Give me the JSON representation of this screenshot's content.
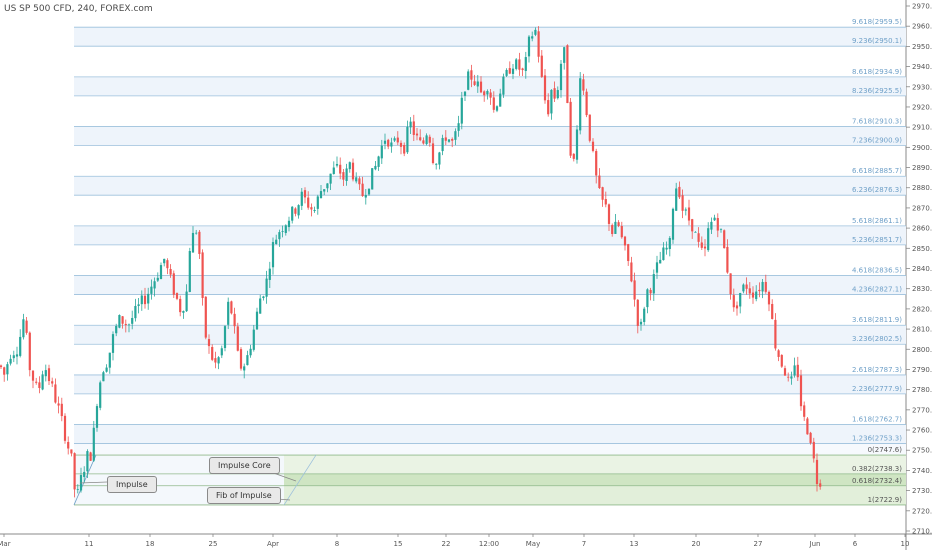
{
  "title": "US SP 500 CFD, 240, FOREX.com",
  "callouts": {
    "impulse": "Impulse",
    "impulse_core": "Impulse Core",
    "fib_of_impulse": "Fib of Impulse"
  },
  "chart_data": {
    "type": "candlestick",
    "title": "US SP 500 CFD, 240, FOREX.com",
    "ylim": [
      2707,
      2973
    ],
    "y_ticks": [
      2710,
      2720,
      2730,
      2740,
      2750,
      2760,
      2770,
      2780,
      2790,
      2800,
      2810,
      2820,
      2830,
      2840,
      2850,
      2860,
      2870,
      2880,
      2890,
      2900,
      2910,
      2920,
      2930,
      2940,
      2950,
      2960,
      2970
    ],
    "x_tick_labels": [
      "Mar",
      "11",
      "18",
      "25",
      "Apr",
      "8",
      "15",
      "22",
      "12:00",
      "May",
      "7",
      "13",
      "20",
      "27",
      "Jun",
      "6",
      "10"
    ],
    "fib_levels": [
      {
        "label": "9.618(2959.5)",
        "value": 2959.5
      },
      {
        "label": "9.236(2950.1)",
        "value": 2950.1
      },
      {
        "label": "8.618(2934.9)",
        "value": 2934.9
      },
      {
        "label": "8.236(2925.5)",
        "value": 2925.5
      },
      {
        "label": "7.618(2910.3)",
        "value": 2910.3
      },
      {
        "label": "7.236(2900.9)",
        "value": 2900.9
      },
      {
        "label": "6.618(2885.7)",
        "value": 2885.7
      },
      {
        "label": "6.236(2876.3)",
        "value": 2876.3
      },
      {
        "label": "5.618(2861.1)",
        "value": 2861.1
      },
      {
        "label": "5.236(2851.7)",
        "value": 2851.7
      },
      {
        "label": "4.618(2836.5)",
        "value": 2836.5
      },
      {
        "label": "4.236(2827.1)",
        "value": 2827.1
      },
      {
        "label": "3.618(2811.9)",
        "value": 2811.9
      },
      {
        "label": "3.236(2802.5)",
        "value": 2802.5
      },
      {
        "label": "2.618(2787.3)",
        "value": 2787.3
      },
      {
        "label": "2.236(2777.9)",
        "value": 2777.9
      },
      {
        "label": "1.618(2762.7)",
        "value": 2762.7
      },
      {
        "label": "1.236(2753.3)",
        "value": 2753.3
      }
    ],
    "impulse_levels": [
      {
        "label": "0(2747.6)",
        "value": 2747.6
      },
      {
        "label": "0.382(2738.3)",
        "value": 2738.3
      },
      {
        "label": "0.618(2732.4)",
        "value": 2732.4
      },
      {
        "label": "1(2722.9)",
        "value": 2722.9
      }
    ],
    "price_path": [
      [
        0,
        2792
      ],
      [
        4,
        2787
      ],
      [
        10,
        2798
      ],
      [
        18,
        2801
      ],
      [
        24,
        2816
      ],
      [
        30,
        2790
      ],
      [
        38,
        2778
      ],
      [
        44,
        2793
      ],
      [
        52,
        2781
      ],
      [
        60,
        2768
      ],
      [
        66,
        2756
      ],
      [
        72,
        2744
      ],
      [
        76,
        2724
      ],
      [
        82,
        2738
      ],
      [
        88,
        2748
      ],
      [
        92,
        2748
      ],
      [
        96,
        2772
      ],
      [
        102,
        2790
      ],
      [
        108,
        2795
      ],
      [
        114,
        2808
      ],
      [
        120,
        2815
      ],
      [
        128,
        2812
      ],
      [
        134,
        2817
      ],
      [
        140,
        2822
      ],
      [
        146,
        2826
      ],
      [
        152,
        2832
      ],
      [
        158,
        2838
      ],
      [
        164,
        2845
      ],
      [
        168,
        2838
      ],
      [
        174,
        2829
      ],
      [
        180,
        2820
      ],
      [
        186,
        2824
      ],
      [
        190,
        2852
      ],
      [
        196,
        2860
      ],
      [
        200,
        2845
      ],
      [
        204,
        2810
      ],
      [
        210,
        2798
      ],
      [
        216,
        2792
      ],
      [
        222,
        2800
      ],
      [
        228,
        2822
      ],
      [
        232,
        2818
      ],
      [
        238,
        2796
      ],
      [
        242,
        2790
      ],
      [
        248,
        2797
      ],
      [
        254,
        2810
      ],
      [
        260,
        2825
      ],
      [
        266,
        2832
      ],
      [
        272,
        2850
      ],
      [
        278,
        2858
      ],
      [
        284,
        2862
      ],
      [
        290,
        2866
      ],
      [
        296,
        2870
      ],
      [
        302,
        2876
      ],
      [
        308,
        2872
      ],
      [
        314,
        2868
      ],
      [
        320,
        2878
      ],
      [
        326,
        2882
      ],
      [
        332,
        2888
      ],
      [
        338,
        2890
      ],
      [
        344,
        2884
      ],
      [
        350,
        2892
      ],
      [
        356,
        2882
      ],
      [
        362,
        2876
      ],
      [
        368,
        2882
      ],
      [
        374,
        2888
      ],
      [
        380,
        2898
      ],
      [
        386,
        2906
      ],
      [
        392,
        2900
      ],
      [
        398,
        2904
      ],
      [
        404,
        2900
      ],
      [
        410,
        2912
      ],
      [
        416,
        2905
      ],
      [
        422,
        2900
      ],
      [
        428,
        2910
      ],
      [
        434,
        2892
      ],
      [
        440,
        2898
      ],
      [
        446,
        2906
      ],
      [
        452,
        2902
      ],
      [
        458,
        2908
      ],
      [
        464,
        2930
      ],
      [
        470,
        2936
      ],
      [
        476,
        2932
      ],
      [
        482,
        2926
      ],
      [
        488,
        2932
      ],
      [
        494,
        2918
      ],
      [
        500,
        2928
      ],
      [
        506,
        2935
      ],
      [
        512,
        2942
      ],
      [
        518,
        2940
      ],
      [
        524,
        2936
      ],
      [
        530,
        2955
      ],
      [
        536,
        2958
      ],
      [
        540,
        2940
      ],
      [
        544,
        2925
      ],
      [
        548,
        2918
      ],
      [
        552,
        2930
      ],
      [
        556,
        2922
      ],
      [
        560,
        2940
      ],
      [
        564,
        2948
      ],
      [
        568,
        2920
      ],
      [
        572,
        2888
      ],
      [
        576,
        2898
      ],
      [
        580,
        2938
      ],
      [
        586,
        2920
      ],
      [
        590,
        2905
      ],
      [
        596,
        2885
      ],
      [
        600,
        2875
      ],
      [
        606,
        2870
      ],
      [
        612,
        2858
      ],
      [
        618,
        2862
      ],
      [
        624,
        2850
      ],
      [
        630,
        2840
      ],
      [
        636,
        2820
      ],
      [
        640,
        2808
      ],
      [
        646,
        2828
      ],
      [
        652,
        2832
      ],
      [
        658,
        2842
      ],
      [
        664,
        2848
      ],
      [
        670,
        2852
      ],
      [
        674,
        2878
      ],
      [
        678,
        2883
      ],
      [
        682,
        2870
      ],
      [
        688,
        2865
      ],
      [
        692,
        2862
      ],
      [
        698,
        2852
      ],
      [
        704,
        2845
      ],
      [
        708,
        2858
      ],
      [
        714,
        2866
      ],
      [
        720,
        2860
      ],
      [
        724,
        2850
      ],
      [
        728,
        2838
      ],
      [
        734,
        2818
      ],
      [
        740,
        2828
      ],
      [
        746,
        2832
      ],
      [
        752,
        2828
      ],
      [
        758,
        2830
      ],
      [
        764,
        2834
      ],
      [
        770,
        2824
      ],
      [
        774,
        2805
      ],
      [
        780,
        2795
      ],
      [
        786,
        2788
      ],
      [
        790,
        2780
      ],
      [
        794,
        2790
      ],
      [
        798,
        2788
      ],
      [
        802,
        2768
      ],
      [
        806,
        2762
      ],
      [
        810,
        2758
      ],
      [
        812,
        2752
      ],
      [
        816,
        2736
      ],
      [
        820,
        2734
      ],
      [
        822,
        2748
      ]
    ]
  }
}
